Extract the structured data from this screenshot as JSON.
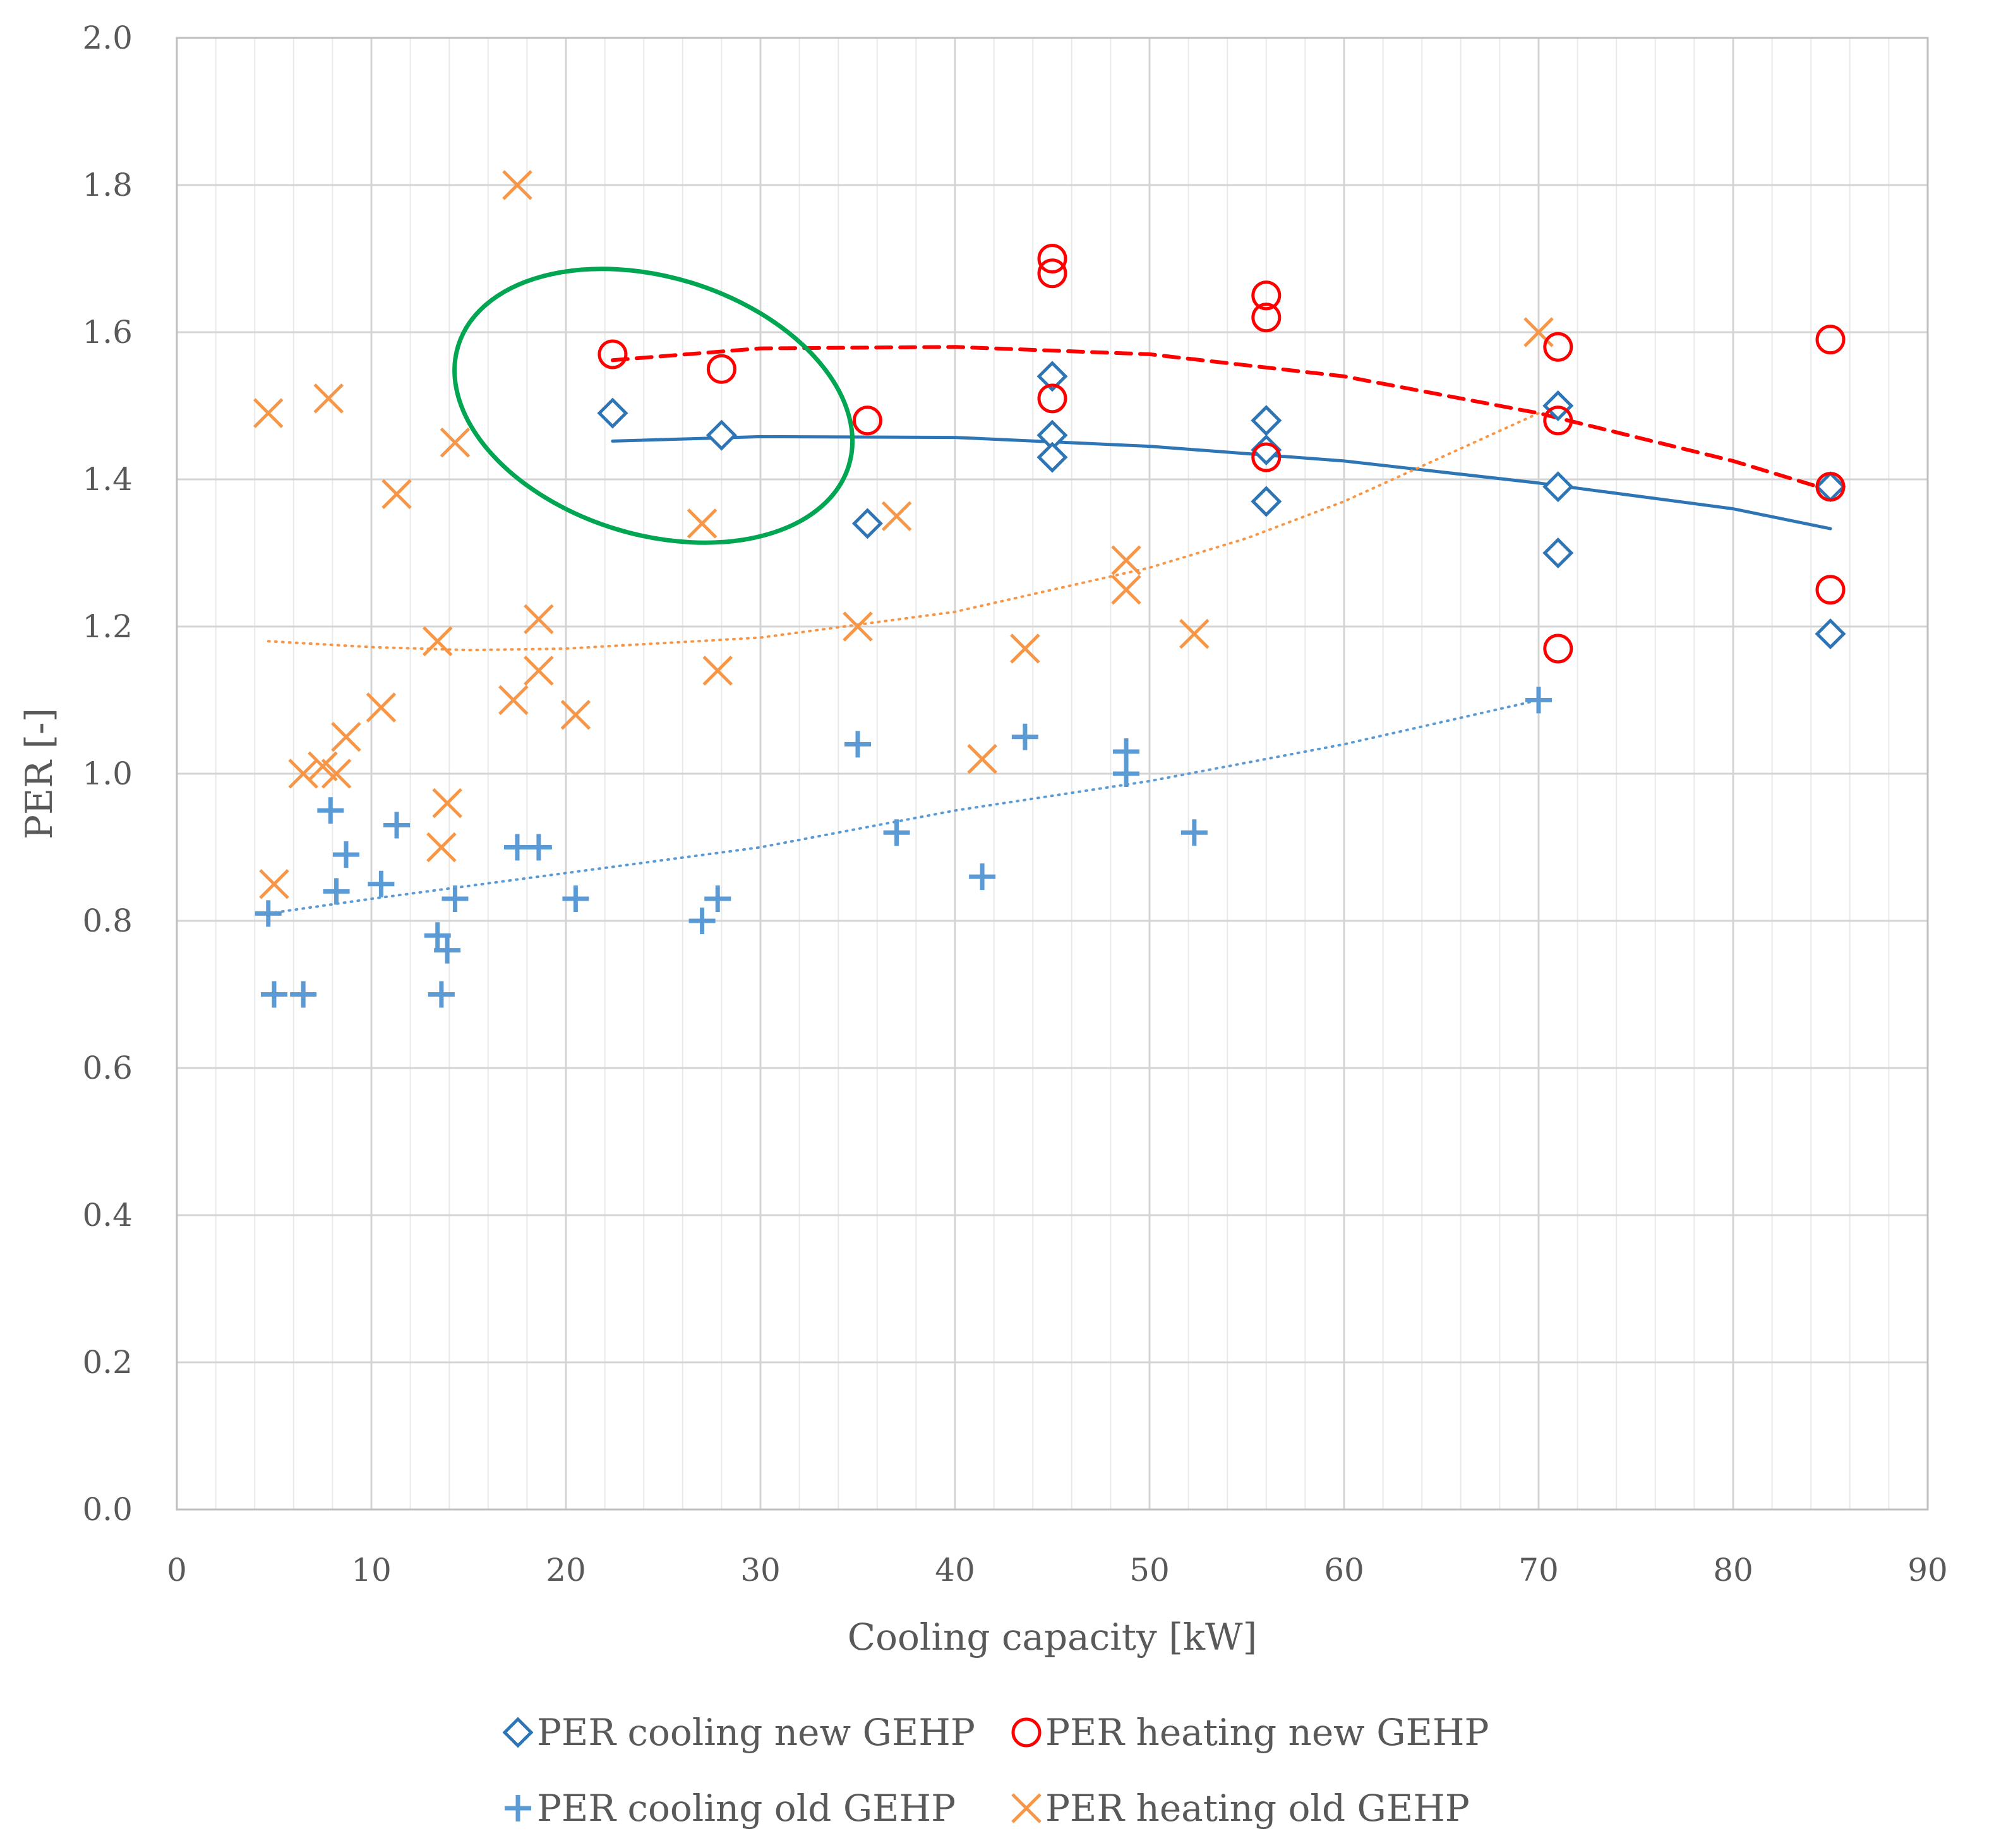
{
  "chart_data": {
    "type": "scatter",
    "title": "",
    "xlabel": "Cooling capacity [kW]",
    "ylabel": "PER [-]",
    "xlim": [
      0,
      90
    ],
    "ylim": [
      0.0,
      2.0
    ],
    "x_ticks": [
      "0",
      "10",
      "20",
      "30",
      "40",
      "50",
      "60",
      "70",
      "80",
      "90"
    ],
    "y_ticks": [
      "0.0",
      "0.2",
      "0.4",
      "0.6",
      "0.8",
      "1.0",
      "1.2",
      "1.4",
      "1.6",
      "1.8",
      "2.0"
    ],
    "grid": true,
    "legend_position": "bottom",
    "series": [
      {
        "name": "PER cooling new GEHP",
        "marker": "diamond",
        "color": "#2E75B6",
        "points": [
          [
            22.4,
            1.49
          ],
          [
            28,
            1.46
          ],
          [
            35.5,
            1.34
          ],
          [
            45,
            1.54
          ],
          [
            45,
            1.46
          ],
          [
            45,
            1.43
          ],
          [
            56,
            1.48
          ],
          [
            56,
            1.44
          ],
          [
            56,
            1.37
          ],
          [
            71,
            1.5
          ],
          [
            71,
            1.39
          ],
          [
            71,
            1.3
          ],
          [
            85,
            1.39
          ],
          [
            85,
            1.19
          ]
        ]
      },
      {
        "name": "PER heating new GEHP",
        "marker": "circle",
        "color": "#FF0000",
        "points": [
          [
            22.4,
            1.57
          ],
          [
            28,
            1.55
          ],
          [
            35.5,
            1.48
          ],
          [
            45,
            1.7
          ],
          [
            45,
            1.68
          ],
          [
            45,
            1.51
          ],
          [
            56,
            1.65
          ],
          [
            56,
            1.62
          ],
          [
            56,
            1.43
          ],
          [
            71,
            1.58
          ],
          [
            71,
            1.48
          ],
          [
            71,
            1.17
          ],
          [
            85,
            1.59
          ],
          [
            85,
            1.39
          ],
          [
            85,
            1.25
          ]
        ]
      },
      {
        "name": "PER cooling old GEHP",
        "marker": "plus",
        "color": "#5B9BD5",
        "points": [
          [
            4.7,
            0.81
          ],
          [
            5,
            0.7
          ],
          [
            6.5,
            0.7
          ],
          [
            7.9,
            0.95
          ],
          [
            8.2,
            0.84
          ],
          [
            8.7,
            0.89
          ],
          [
            10.5,
            0.85
          ],
          [
            11.3,
            0.93
          ],
          [
            13.4,
            0.78
          ],
          [
            13.6,
            0.7
          ],
          [
            13.9,
            0.76
          ],
          [
            14.3,
            0.83
          ],
          [
            17.5,
            0.9
          ],
          [
            18.6,
            0.9
          ],
          [
            20.5,
            0.83
          ],
          [
            27,
            0.8
          ],
          [
            27.8,
            0.83
          ],
          [
            35,
            1.04
          ],
          [
            37,
            0.92
          ],
          [
            41.4,
            0.86
          ],
          [
            43.6,
            1.05
          ],
          [
            48.8,
            1.03
          ],
          [
            48.8,
            1.0
          ],
          [
            52.3,
            0.92
          ],
          [
            70,
            1.1
          ]
        ]
      },
      {
        "name": "PER heating old GEHP",
        "marker": "x",
        "color": "#F79646",
        "points": [
          [
            4.7,
            1.49
          ],
          [
            5,
            0.85
          ],
          [
            6.5,
            1.0
          ],
          [
            7.5,
            1.01
          ],
          [
            7.8,
            1.51
          ],
          [
            8.2,
            1.0
          ],
          [
            8.7,
            1.05
          ],
          [
            10.5,
            1.09
          ],
          [
            11.3,
            1.38
          ],
          [
            13.4,
            1.18
          ],
          [
            13.6,
            0.9
          ],
          [
            13.9,
            0.96
          ],
          [
            14.3,
            1.45
          ],
          [
            17.5,
            1.8
          ],
          [
            17.3,
            1.1
          ],
          [
            18.6,
            1.21
          ],
          [
            18.6,
            1.14
          ],
          [
            20.5,
            1.08
          ],
          [
            27,
            1.34
          ],
          [
            27.8,
            1.14
          ],
          [
            35,
            1.2
          ],
          [
            37,
            1.35
          ],
          [
            41.4,
            1.02
          ],
          [
            43.6,
            1.17
          ],
          [
            48.8,
            1.29
          ],
          [
            48.8,
            1.25
          ],
          [
            52.3,
            1.19
          ],
          [
            70,
            1.6
          ]
        ]
      }
    ],
    "trendlines": [
      {
        "series": "PER cooling new GEHP",
        "style": "solid",
        "color": "#2E75B6",
        "points": [
          [
            22.4,
            1.452
          ],
          [
            30,
            1.458
          ],
          [
            40,
            1.457
          ],
          [
            50,
            1.445
          ],
          [
            60,
            1.425
          ],
          [
            70,
            1.395
          ],
          [
            80,
            1.36
          ],
          [
            85,
            1.333
          ]
        ]
      },
      {
        "series": "PER heating new GEHP",
        "style": "dashed",
        "color": "#FF0000",
        "points": [
          [
            22.4,
            1.562
          ],
          [
            30,
            1.578
          ],
          [
            40,
            1.58
          ],
          [
            50,
            1.57
          ],
          [
            60,
            1.54
          ],
          [
            70,
            1.49
          ],
          [
            80,
            1.425
          ],
          [
            85,
            1.385
          ]
        ]
      },
      {
        "series": "PER cooling old GEHP",
        "style": "dotted",
        "color": "#5B9BD5",
        "points": [
          [
            4.7,
            0.81
          ],
          [
            10,
            0.83
          ],
          [
            20,
            0.865
          ],
          [
            30,
            0.9
          ],
          [
            40,
            0.95
          ],
          [
            50,
            0.99
          ],
          [
            60,
            1.04
          ],
          [
            70,
            1.1
          ]
        ]
      },
      {
        "series": "PER heating old GEHP",
        "style": "dotted",
        "color": "#F79646",
        "points": [
          [
            4.7,
            1.18
          ],
          [
            10,
            1.172
          ],
          [
            15,
            1.168
          ],
          [
            20,
            1.17
          ],
          [
            30,
            1.185
          ],
          [
            40,
            1.22
          ],
          [
            50,
            1.28
          ],
          [
            55,
            1.32
          ],
          [
            60,
            1.37
          ],
          [
            65,
            1.43
          ],
          [
            70,
            1.49
          ]
        ]
      }
    ],
    "annotations": [
      {
        "type": "ellipse",
        "color": "#00A651",
        "center": [
          24.5,
          1.5
        ],
        "semi_axes_data": [
          10.5,
          0.175
        ],
        "rotation_deg": 17
      }
    ]
  }
}
